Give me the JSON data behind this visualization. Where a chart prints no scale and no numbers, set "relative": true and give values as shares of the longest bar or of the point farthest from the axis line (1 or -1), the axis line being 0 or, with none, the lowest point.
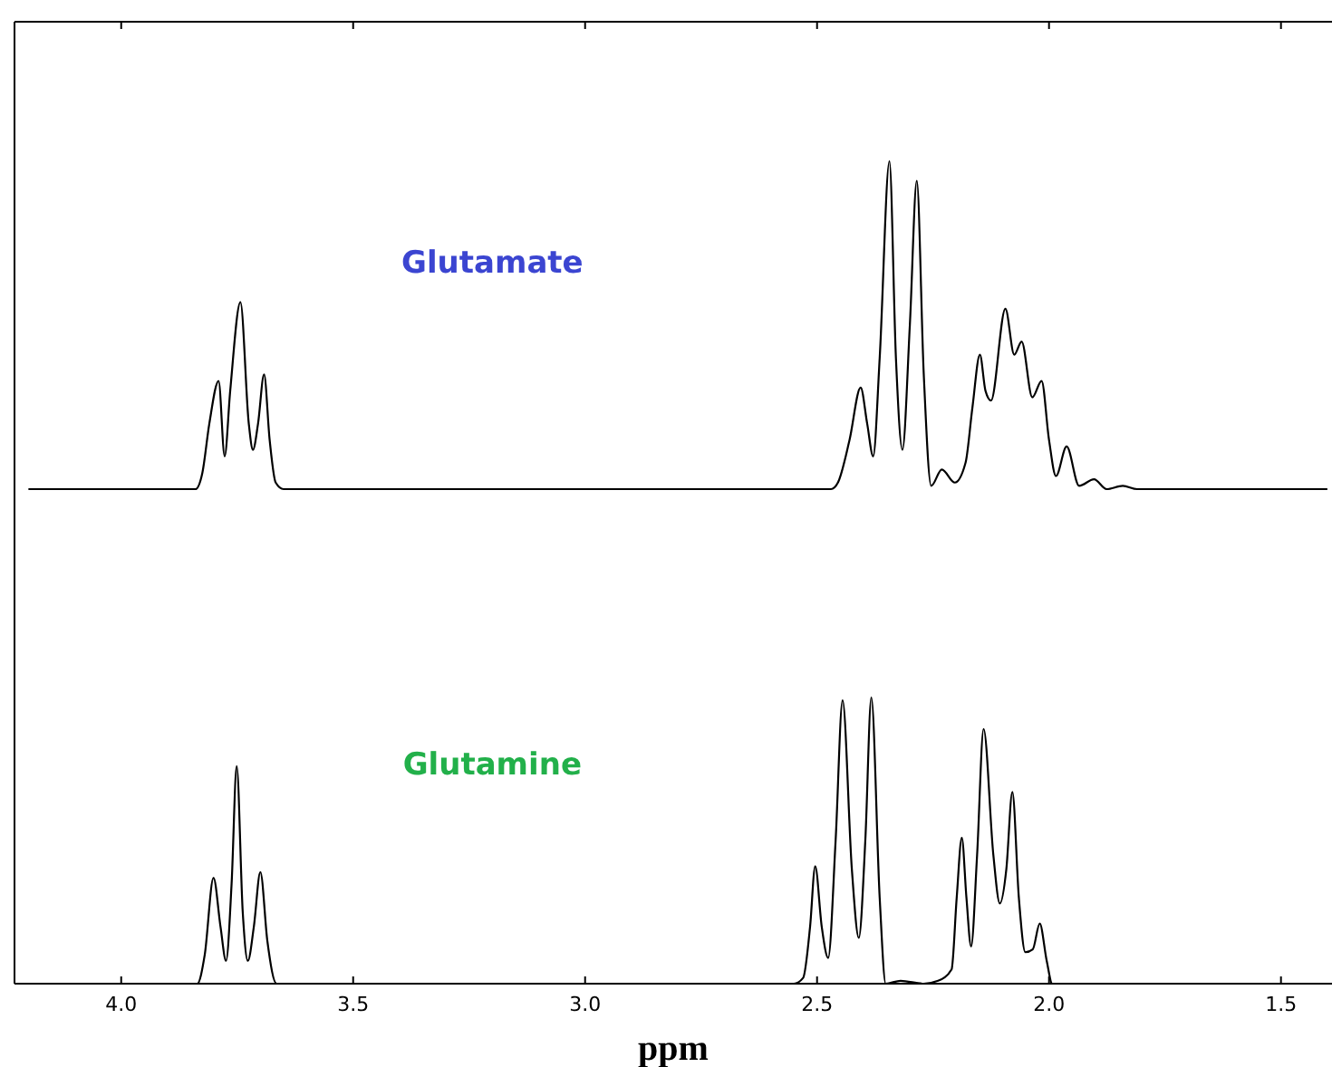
{
  "chart_data": [
    {
      "type": "line",
      "relative": true,
      "xlim": [
        4.23,
        1.39
      ],
      "xticks": [
        {
          "value": 4.0,
          "label": null
        },
        {
          "value": 3.5,
          "label": null
        },
        {
          "value": 3.0,
          "label": null
        },
        {
          "value": 2.5,
          "label": null
        },
        {
          "value": 2.0,
          "label": null
        },
        {
          "value": 1.5,
          "label": null
        }
      ],
      "tick_labels": false,
      "marker": "none",
      "line_style": "solid",
      "series": [
        {
          "name": "Glutamate",
          "color": "#000000",
          "x": [
            4.2,
            3.84,
            3.825,
            3.81,
            3.79,
            3.777,
            3.765,
            3.743,
            3.725,
            3.716,
            3.705,
            3.692,
            3.68,
            3.667,
            3.65,
            2.47,
            2.455,
            2.43,
            2.406,
            2.392,
            2.379,
            2.365,
            2.344,
            2.33,
            2.316,
            2.3,
            2.285,
            2.27,
            2.254,
            2.231,
            2.203,
            2.18,
            2.165,
            2.149,
            2.137,
            2.125,
            2.094,
            2.075,
            2.059,
            2.036,
            2.016,
            2.0,
            1.985,
            1.962,
            1.935,
            1.903,
            1.876,
            1.841,
            1.81,
            1.4
          ],
          "values": [
            0,
            0,
            0.05,
            0.2,
            0.33,
            0.1,
            0.3,
            0.57,
            0.2,
            0.12,
            0.2,
            0.35,
            0.15,
            0.02,
            0,
            0,
            0.02,
            0.15,
            0.31,
            0.2,
            0.1,
            0.4,
            1.0,
            0.4,
            0.12,
            0.5,
            0.94,
            0.35,
            0.01,
            0.06,
            0.02,
            0.08,
            0.25,
            0.41,
            0.3,
            0.27,
            0.55,
            0.41,
            0.45,
            0.28,
            0.33,
            0.15,
            0.04,
            0.13,
            0.01,
            0.03,
            0,
            0.01,
            0,
            0
          ]
        }
      ]
    },
    {
      "type": "line",
      "relative": true,
      "xlim": [
        4.23,
        1.39
      ],
      "xticks": [
        {
          "value": 4.0,
          "label": "4.0"
        },
        {
          "value": 3.5,
          "label": "3.5"
        },
        {
          "value": 3.0,
          "label": "3.0"
        },
        {
          "value": 2.5,
          "label": "2.5"
        },
        {
          "value": 2.0,
          "label": "2.0"
        },
        {
          "value": 1.5,
          "label": "1.5"
        }
      ],
      "tick_labels": "x",
      "xlabel": "ppm",
      "marker": "none",
      "line_style": "solid",
      "series": [
        {
          "name": "Glutamine",
          "color": "#000000",
          "x": [
            4.2,
            3.836,
            3.82,
            3.801,
            3.786,
            3.774,
            3.762,
            3.751,
            3.738,
            3.727,
            3.714,
            3.7,
            3.685,
            3.665,
            3.65,
            2.55,
            2.53,
            2.515,
            2.504,
            2.49,
            2.476,
            2.46,
            2.445,
            2.425,
            2.41,
            2.396,
            2.383,
            2.365,
            2.352,
            2.32,
            2.27,
            2.239,
            2.21,
            2.199,
            2.188,
            2.178,
            2.168,
            2.155,
            2.141,
            2.12,
            2.106,
            2.092,
            2.079,
            2.065,
            2.051,
            2.035,
            2.02,
            2.005,
            1.993,
            1.4
          ],
          "values": [
            0,
            0,
            0.1,
            0.37,
            0.2,
            0.08,
            0.35,
            0.76,
            0.25,
            0.08,
            0.2,
            0.39,
            0.15,
            0,
            0,
            0,
            0.02,
            0.2,
            0.41,
            0.2,
            0.09,
            0.5,
            0.99,
            0.4,
            0.16,
            0.5,
            1.0,
            0.3,
            0,
            0.01,
            0,
            0.01,
            0.05,
            0.3,
            0.51,
            0.3,
            0.13,
            0.45,
            0.89,
            0.45,
            0.28,
            0.4,
            0.67,
            0.3,
            0.11,
            0.12,
            0.21,
            0.08,
            0,
            0
          ]
        }
      ]
    }
  ]
}
